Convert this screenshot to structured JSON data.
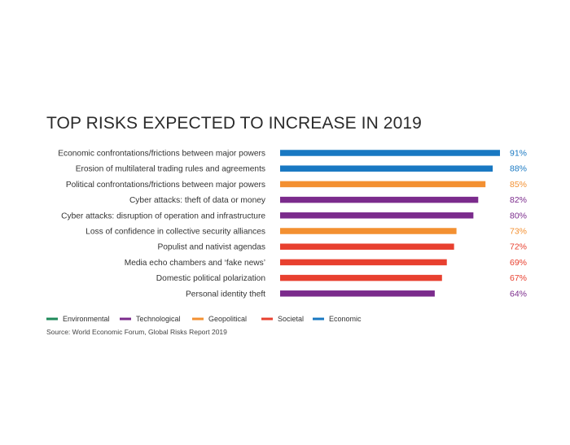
{
  "chart_data": {
    "type": "bar",
    "orientation": "horizontal",
    "title": "TOP RISKS EXPECTED TO INCREASE IN 2019",
    "xlim": [
      0,
      91
    ],
    "grid": false,
    "legend_position": "bottom-left",
    "value_suffix": "%",
    "categories": [
      "Economic confrontations/frictions between major powers",
      "Erosion of multilateral trading rules and agreements",
      "Political confrontations/frictions between major powers",
      "Cyber attacks: theft of data or money",
      "Cyber attacks: disruption of operation and infrastructure",
      "Loss of confidence in collective security alliances",
      "Populist and nativist agendas",
      "Media echo chambers and ‘fake news’",
      "Domestic political polarization",
      "Personal identity theft"
    ],
    "values": [
      91,
      88,
      85,
      82,
      80,
      73,
      72,
      69,
      67,
      64
    ],
    "value_labels": [
      "91%",
      "88%",
      "85%",
      "82%",
      "80%",
      "73%",
      "72%",
      "69%",
      "67%",
      "64%"
    ],
    "bar_groups": [
      "Economic",
      "Economic",
      "Geopolitical",
      "Technological",
      "Technological",
      "Geopolitical",
      "Societal",
      "Societal",
      "Societal",
      "Technological"
    ],
    "legend": [
      {
        "name": "Environmental",
        "color": "#1e8a5a"
      },
      {
        "name": "Technological",
        "color": "#7b2b8c"
      },
      {
        "name": "Geopolitical",
        "color": "#f39031"
      },
      {
        "name": "Societal",
        "color": "#e8402f"
      },
      {
        "name": "Economic",
        "color": "#1878c2"
      }
    ],
    "source": "Source: World Economic Forum, Global Risks Report 2019"
  }
}
